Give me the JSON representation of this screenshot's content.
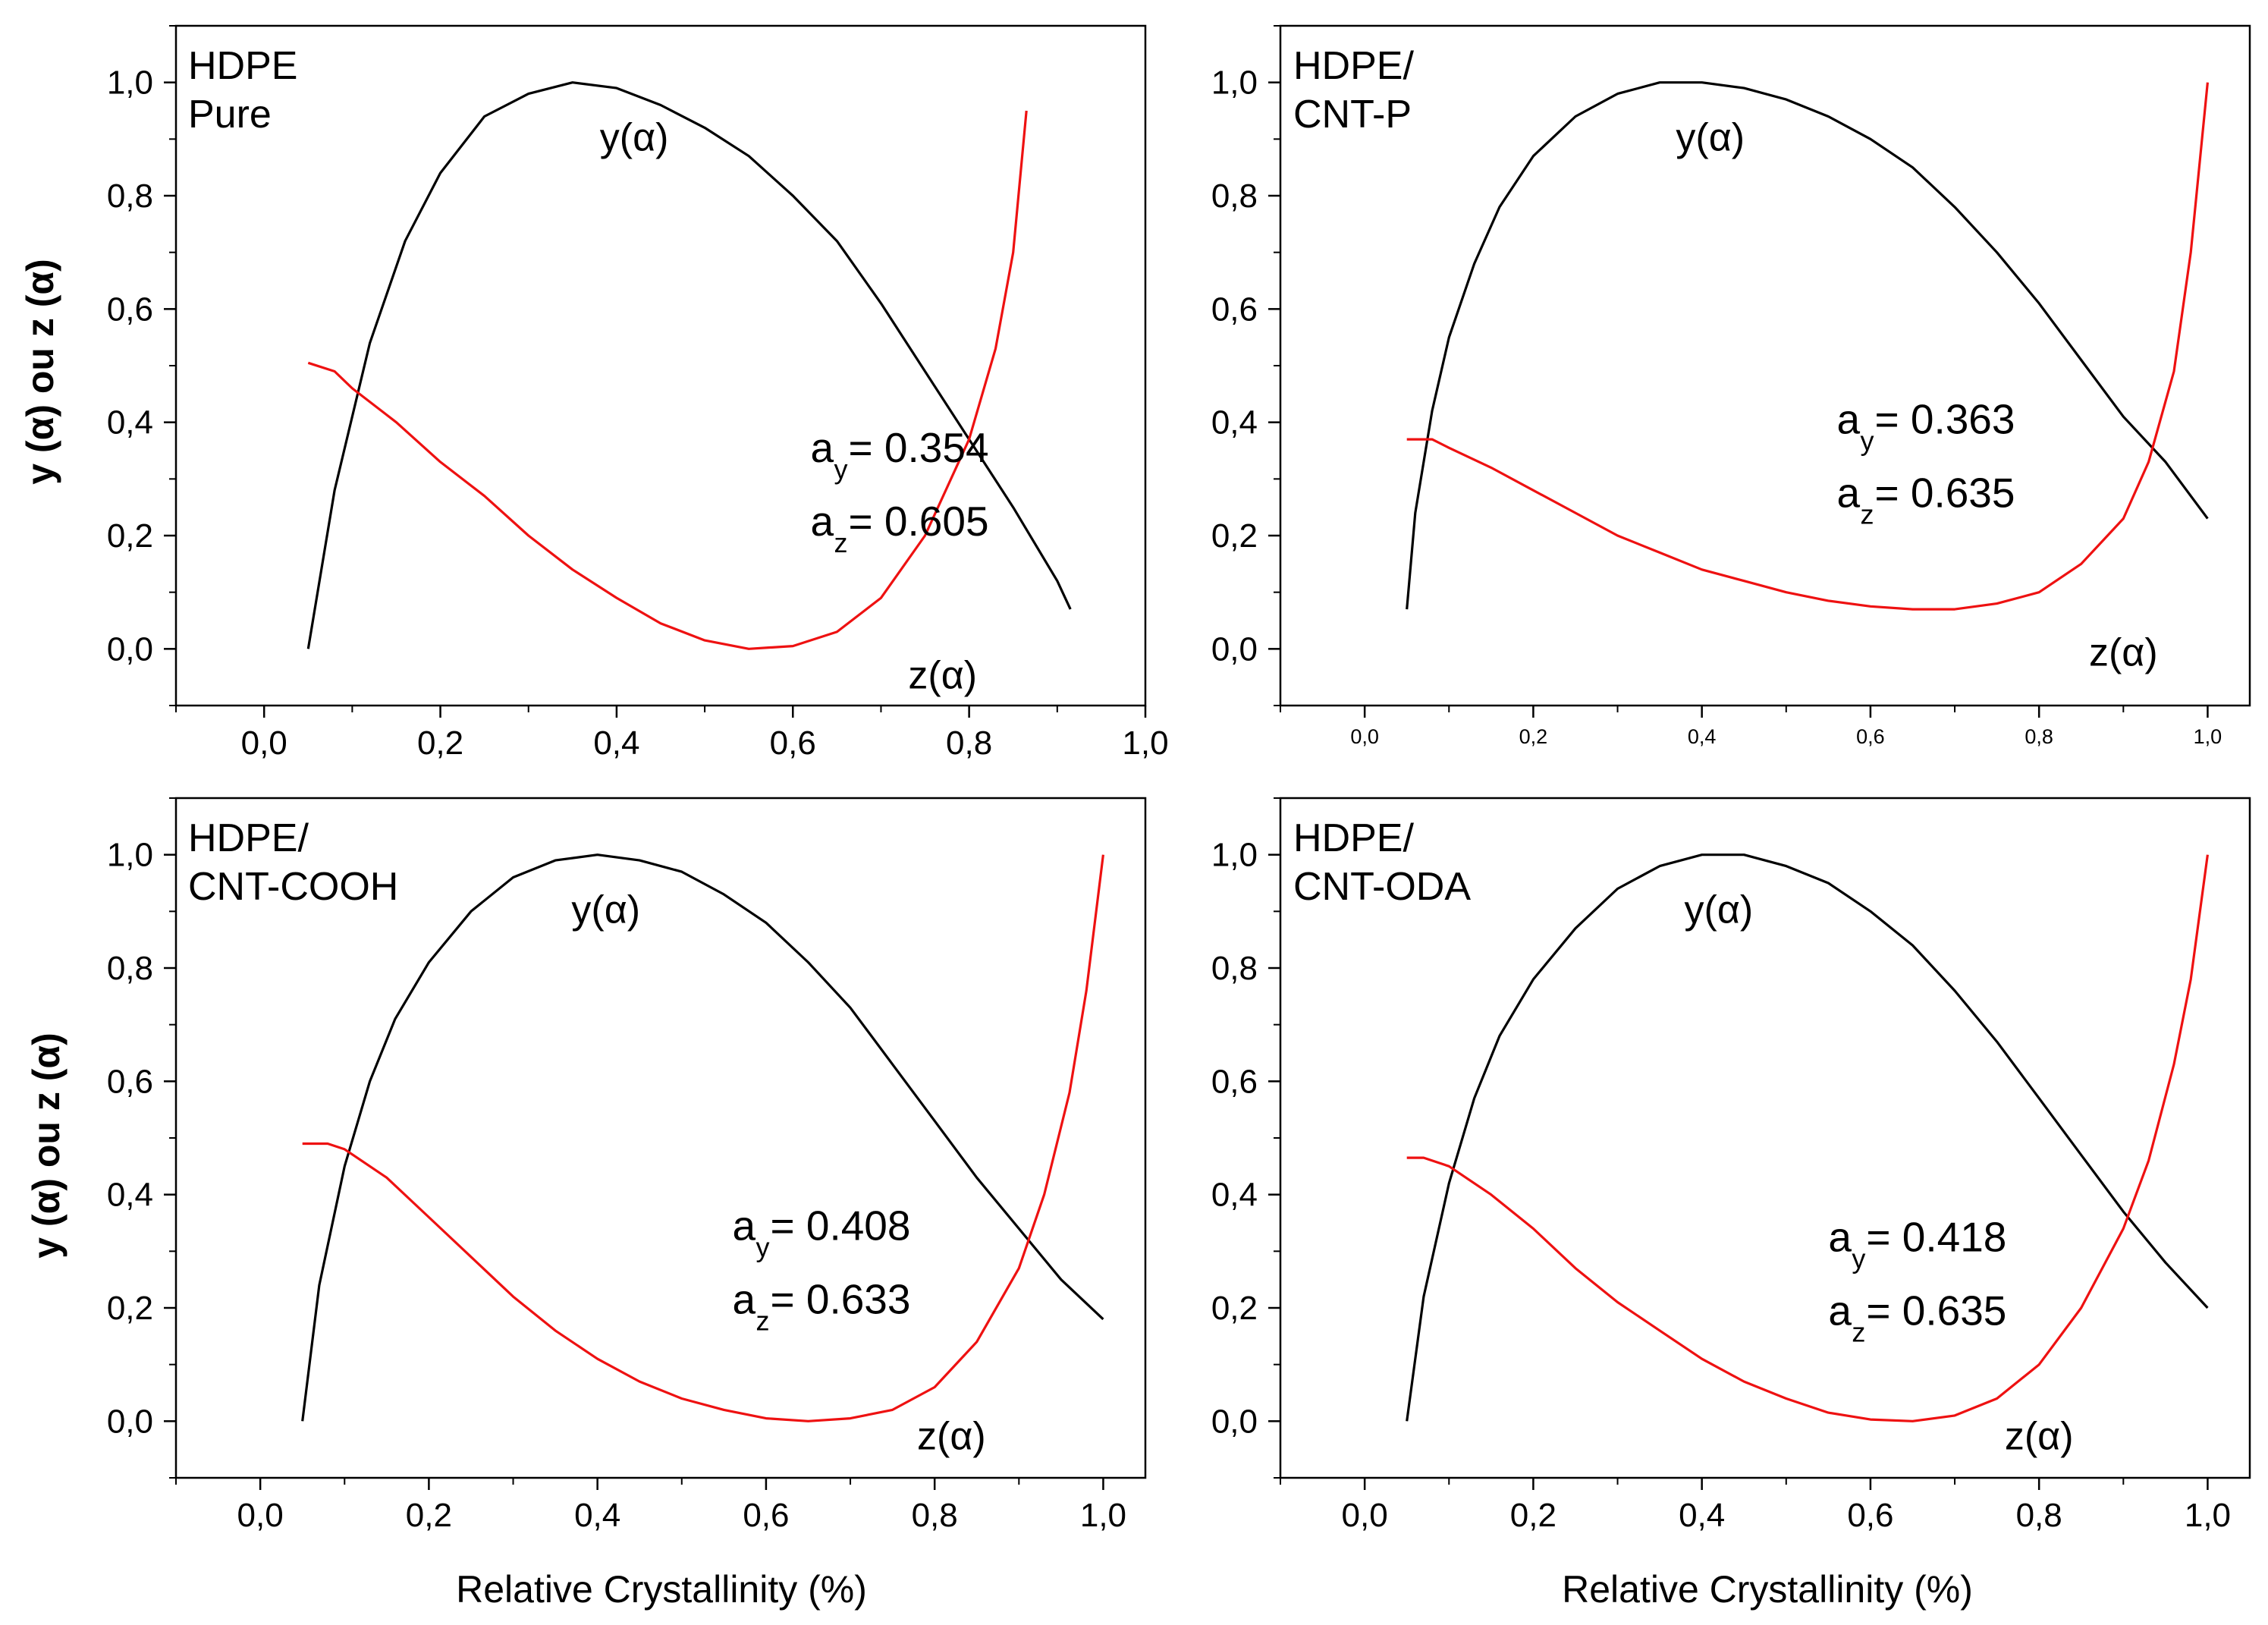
{
  "figure": {
    "y_axis_label": "y (α) ou z (α)",
    "x_axis_label": "Relative Crystallinity (%)"
  },
  "chart_data": [
    {
      "type": "line",
      "title_lines": [
        "HDPE",
        "Pure"
      ],
      "xlim": [
        -0.1,
        1.0
      ],
      "ylim": [
        -0.1,
        1.1
      ],
      "x_ticks": [
        "0,0",
        "0,2",
        "0,4",
        "0,6",
        "0,8",
        "1,0"
      ],
      "y_ticks": [
        "0,0",
        "0,2",
        "0,4",
        "0,6",
        "0,8",
        "1,0"
      ],
      "xlabel": "",
      "ylabel": "y (α) ou z (α)",
      "grid": false,
      "series": [
        {
          "name": "y(α)",
          "color": "#000000",
          "x": [
            0.05,
            0.08,
            0.12,
            0.16,
            0.2,
            0.25,
            0.3,
            0.35,
            0.4,
            0.45,
            0.5,
            0.55,
            0.6,
            0.65,
            0.7,
            0.75,
            0.8,
            0.85,
            0.9,
            0.915
          ],
          "y": [
            0.0,
            0.28,
            0.54,
            0.72,
            0.84,
            0.94,
            0.98,
            1.0,
            0.99,
            0.96,
            0.92,
            0.87,
            0.8,
            0.72,
            0.61,
            0.49,
            0.37,
            0.25,
            0.12,
            0.07
          ]
        },
        {
          "name": "z(α)",
          "color": "#ee1111",
          "x": [
            0.05,
            0.08,
            0.1,
            0.15,
            0.2,
            0.25,
            0.3,
            0.35,
            0.4,
            0.45,
            0.5,
            0.55,
            0.6,
            0.65,
            0.7,
            0.75,
            0.8,
            0.83,
            0.85,
            0.865
          ],
          "y": [
            0.505,
            0.49,
            0.46,
            0.4,
            0.33,
            0.27,
            0.2,
            0.14,
            0.09,
            0.045,
            0.015,
            0.0,
            0.005,
            0.03,
            0.09,
            0.2,
            0.37,
            0.53,
            0.7,
            0.95
          ]
        }
      ],
      "curve_labels": [
        "y(α)",
        "z(α)"
      ],
      "annotations": {
        "ay": "= 0.354",
        "az": "= 0.605"
      }
    },
    {
      "type": "line",
      "title_lines": [
        "HDPE/",
        "CNT-P"
      ],
      "xlim": [
        -0.1,
        1.05
      ],
      "ylim": [
        -0.1,
        1.1
      ],
      "x_ticks": [
        "0,0",
        "0,2",
        "0,4",
        "0,6",
        "0,8",
        "1,0"
      ],
      "y_ticks": [
        "0,0",
        "0,2",
        "0,4",
        "0,6",
        "0,8",
        "1,0"
      ],
      "xlabel": "",
      "ylabel": "",
      "grid": false,
      "series": [
        {
          "name": "y(α)",
          "color": "#000000",
          "x": [
            0.05,
            0.06,
            0.08,
            0.1,
            0.13,
            0.16,
            0.2,
            0.25,
            0.3,
            0.35,
            0.4,
            0.45,
            0.5,
            0.55,
            0.6,
            0.65,
            0.7,
            0.75,
            0.8,
            0.85,
            0.9,
            0.95,
            1.0
          ],
          "y": [
            0.07,
            0.24,
            0.42,
            0.55,
            0.68,
            0.78,
            0.87,
            0.94,
            0.98,
            1.0,
            1.0,
            0.99,
            0.97,
            0.94,
            0.9,
            0.85,
            0.78,
            0.7,
            0.61,
            0.51,
            0.41,
            0.33,
            0.23
          ]
        },
        {
          "name": "z(α)",
          "color": "#ee1111",
          "x": [
            0.05,
            0.08,
            0.1,
            0.15,
            0.2,
            0.25,
            0.3,
            0.35,
            0.4,
            0.45,
            0.5,
            0.55,
            0.6,
            0.65,
            0.7,
            0.75,
            0.8,
            0.85,
            0.9,
            0.93,
            0.96,
            0.98,
            1.0
          ],
          "y": [
            0.37,
            0.37,
            0.355,
            0.32,
            0.28,
            0.24,
            0.2,
            0.17,
            0.14,
            0.12,
            0.1,
            0.085,
            0.075,
            0.07,
            0.07,
            0.08,
            0.1,
            0.15,
            0.23,
            0.33,
            0.49,
            0.7,
            1.0
          ]
        }
      ],
      "curve_labels": [
        "y(α)",
        "z(α)"
      ],
      "annotations": {
        "ay": "= 0.363",
        "az": "= 0.635"
      }
    },
    {
      "type": "line",
      "title_lines": [
        "HDPE/",
        "CNT-COOH"
      ],
      "xlim": [
        -0.1,
        1.05
      ],
      "ylim": [
        -0.1,
        1.1
      ],
      "x_ticks": [
        "0,0",
        "0,2",
        "0,4",
        "0,6",
        "0,8",
        "1,0"
      ],
      "y_ticks": [
        "0,0",
        "0,2",
        "0,4",
        "0,6",
        "0,8",
        "1,0"
      ],
      "xlabel": "Relative Crystallinity (%)",
      "ylabel": "y (α) ou z (α)",
      "grid": false,
      "series": [
        {
          "name": "y(α)",
          "color": "#000000",
          "x": [
            0.05,
            0.07,
            0.1,
            0.13,
            0.16,
            0.2,
            0.25,
            0.3,
            0.35,
            0.4,
            0.45,
            0.5,
            0.55,
            0.6,
            0.65,
            0.7,
            0.75,
            0.8,
            0.85,
            0.9,
            0.95,
            1.0
          ],
          "y": [
            0.0,
            0.24,
            0.45,
            0.6,
            0.71,
            0.81,
            0.9,
            0.96,
            0.99,
            1.0,
            0.99,
            0.97,
            0.93,
            0.88,
            0.81,
            0.73,
            0.63,
            0.53,
            0.43,
            0.34,
            0.25,
            0.18
          ]
        },
        {
          "name": "z(α)",
          "color": "#ee1111",
          "x": [
            0.05,
            0.08,
            0.1,
            0.15,
            0.2,
            0.25,
            0.3,
            0.35,
            0.4,
            0.45,
            0.5,
            0.55,
            0.6,
            0.65,
            0.7,
            0.75,
            0.8,
            0.85,
            0.9,
            0.93,
            0.96,
            0.98,
            1.0
          ],
          "y": [
            0.49,
            0.49,
            0.48,
            0.43,
            0.36,
            0.29,
            0.22,
            0.16,
            0.11,
            0.07,
            0.04,
            0.02,
            0.005,
            0.0,
            0.005,
            0.02,
            0.06,
            0.14,
            0.27,
            0.4,
            0.58,
            0.76,
            1.0
          ]
        }
      ],
      "curve_labels": [
        "y(α)",
        "z(α)"
      ],
      "annotations": {
        "ay": "= 0.408",
        "az": "= 0.633"
      }
    },
    {
      "type": "line",
      "title_lines": [
        "HDPE/",
        "CNT-ODA"
      ],
      "xlim": [
        -0.1,
        1.05
      ],
      "ylim": [
        -0.1,
        1.1
      ],
      "x_ticks": [
        "0,0",
        "0,2",
        "0,4",
        "0,6",
        "0,8",
        "1,0"
      ],
      "y_ticks": [
        "0,0",
        "0,2",
        "0,4",
        "0,6",
        "0,8",
        "1,0"
      ],
      "xlabel": "Relative Crystallinity (%)",
      "ylabel": "",
      "grid": false,
      "series": [
        {
          "name": "y(α)",
          "color": "#000000",
          "x": [
            0.05,
            0.07,
            0.1,
            0.13,
            0.16,
            0.2,
            0.25,
            0.3,
            0.35,
            0.4,
            0.45,
            0.5,
            0.55,
            0.6,
            0.65,
            0.7,
            0.75,
            0.8,
            0.85,
            0.9,
            0.95,
            1.0
          ],
          "y": [
            0.0,
            0.22,
            0.42,
            0.57,
            0.68,
            0.78,
            0.87,
            0.94,
            0.98,
            1.0,
            1.0,
            0.98,
            0.95,
            0.9,
            0.84,
            0.76,
            0.67,
            0.57,
            0.47,
            0.37,
            0.28,
            0.2
          ]
        },
        {
          "name": "z(α)",
          "color": "#ee1111",
          "x": [
            0.05,
            0.07,
            0.1,
            0.15,
            0.2,
            0.25,
            0.3,
            0.35,
            0.4,
            0.45,
            0.5,
            0.55,
            0.6,
            0.65,
            0.7,
            0.75,
            0.8,
            0.85,
            0.9,
            0.93,
            0.96,
            0.98,
            1.0
          ],
          "y": [
            0.465,
            0.465,
            0.45,
            0.4,
            0.34,
            0.27,
            0.21,
            0.16,
            0.11,
            0.07,
            0.04,
            0.015,
            0.003,
            0.0,
            0.01,
            0.04,
            0.1,
            0.2,
            0.34,
            0.46,
            0.63,
            0.78,
            1.0
          ]
        }
      ],
      "curve_labels": [
        "y(α)",
        "z(α)"
      ],
      "annotations": {
        "ay": "= 0.418",
        "az": "= 0.635"
      }
    }
  ]
}
